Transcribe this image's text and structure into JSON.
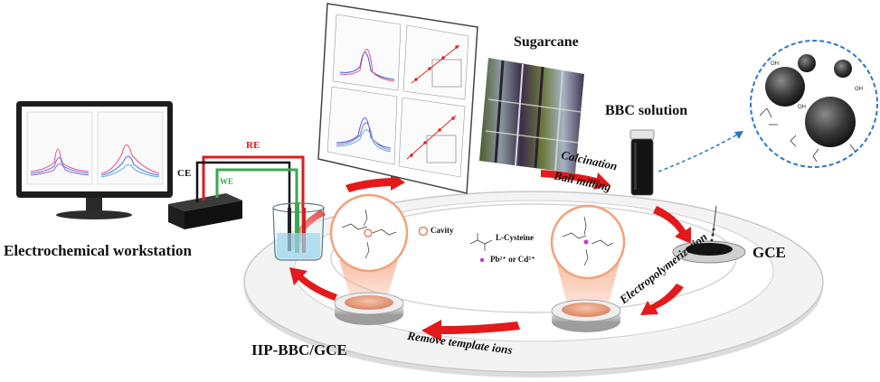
{
  "labels": {
    "workstation": "Electrochemical workstation",
    "re": "RE",
    "ce": "CE",
    "we": "WE",
    "sugarcane": "Sugarcane",
    "bbc_solution": "BBC solution",
    "calcination": "Calcination",
    "ball_milling": "Ball milling",
    "gce": "GCE",
    "electropolymerization": "Electropolymerization",
    "remove_template": "Remove template ions",
    "iip": "IIP-BBC/GCE",
    "cavity": "Cavity",
    "l_cysteine": "L-Cysteine",
    "ions": "Pb²⁺ or Cd²⁺",
    "oh": "OH"
  },
  "colors": {
    "arrow_red": "#e3191b",
    "wire_red": "#d91e1e",
    "wire_green": "#3aa94c",
    "zoom_border": "#2a78c8",
    "electrode_pad": "#e8a07e"
  }
}
